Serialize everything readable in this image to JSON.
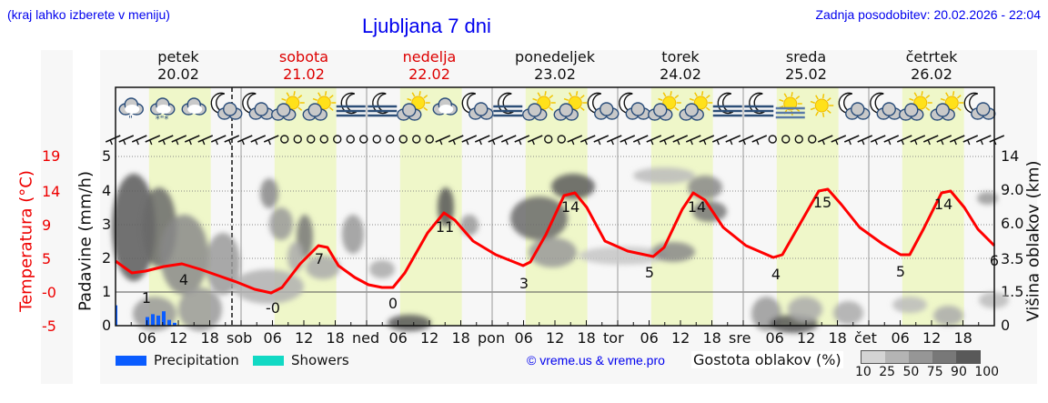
{
  "header": {
    "left_note": "(kraj lahko izberete v meniju)",
    "title": "Ljubljana 7 dni",
    "updated": "Zadnja posodobitev: 20.02.2026 - 22:04"
  },
  "days": [
    {
      "name": "petek",
      "date": "20.02",
      "weekend": false
    },
    {
      "name": "sobota",
      "date": "21.02",
      "weekend": true
    },
    {
      "name": "nedelja",
      "date": "22.02",
      "weekend": true
    },
    {
      "name": "ponedeljek",
      "date": "23.02",
      "weekend": false
    },
    {
      "name": "torek",
      "date": "24.02",
      "weekend": false
    },
    {
      "name": "sreda",
      "date": "25.02",
      "weekend": false
    },
    {
      "name": "četrtek",
      "date": "26.02",
      "weekend": false
    }
  ],
  "axes": {
    "temp_label": "Temperatura (°C)",
    "precip_label": "Padavine (mm/h)",
    "cloud_label": "Višina oblakov (km)",
    "temp_ticks": [
      "19",
      "14",
      "9",
      "5",
      "-0",
      "-5"
    ],
    "precip_ticks": [
      "5",
      "4",
      "3",
      "2",
      "1",
      "0"
    ],
    "cloud_ticks": [
      "14",
      "9.0",
      "6.0",
      "3.5",
      "1.5",
      "0"
    ],
    "x_ticks": [
      "06",
      "12",
      "18",
      "sob",
      "06",
      "12",
      "18",
      "ned",
      "06",
      "12",
      "18",
      "pon",
      "06",
      "12",
      "18",
      "tor",
      "06",
      "12",
      "18",
      "sre",
      "06",
      "12",
      "18",
      "čet",
      "06",
      "12",
      "18"
    ]
  },
  "legend": {
    "precipitation": "Precipitation",
    "showers": "Showers",
    "precipitation_color": "#0a5cff",
    "showers_color": "#12d9c4",
    "copyright": "© vreme.us & vreme.pro",
    "cloud_density_label": "Gostota oblakov (%)",
    "cloud_density_scale": "10 25 50 75 90 100",
    "cloud_density_colors": [
      "#d4d4d4",
      "#b4b4b4",
      "#969696",
      "#787878",
      "#595959"
    ]
  },
  "icons": [
    "cloud-drizzle",
    "cloud-sleet",
    "cloud",
    "moon-cloud",
    "moon-cloud",
    "sun-cloud",
    "sun-cloud",
    "moon-fog",
    "moon-fog",
    "sun-cloud",
    "cloud",
    "moon-cloud",
    "moon-fog",
    "sun-cloud",
    "sun-cloud",
    "moon-cloud",
    "moon-cloud",
    "sun-cloud",
    "sun-cloud",
    "moon-fog",
    "moon-fog",
    "sun-fog",
    "sun",
    "moon-cloud-small",
    "moon-cloud",
    "sun-cloud",
    "sun-cloud",
    "moon-cloud"
  ],
  "chart_data": {
    "type": "line",
    "title": "Ljubljana 7 dni",
    "xlabel": "",
    "ylabel": "Temperatura (°C)",
    "ylabel_secondary": [
      "Padavine (mm/h)",
      "Višina oblakov (km)"
    ],
    "categories": [
      "20.02",
      "21.02",
      "22.02",
      "23.02",
      "24.02",
      "25.02",
      "26.02"
    ],
    "series": [
      {
        "name": "Temperature",
        "color": "#ff0000",
        "points": [
          {
            "x": "20.02 00",
            "y": 2
          },
          {
            "x": "20.02 06",
            "y": 1
          },
          {
            "x": "20.02 12",
            "y": 4
          },
          {
            "x": "20.02 18",
            "y": 3
          },
          {
            "x": "21.02 06",
            "y": 0
          },
          {
            "x": "21.02 14",
            "y": 7
          },
          {
            "x": "22.02 05",
            "y": 0
          },
          {
            "x": "22.02 14",
            "y": 11
          },
          {
            "x": "23.02 07",
            "y": 3
          },
          {
            "x": "23.02 14",
            "y": 14
          },
          {
            "x": "24.02 07",
            "y": 5
          },
          {
            "x": "24.02 14",
            "y": 14
          },
          {
            "x": "25.02 06",
            "y": 4
          },
          {
            "x": "25.02 14",
            "y": 15
          },
          {
            "x": "26.02 06",
            "y": 5
          },
          {
            "x": "26.02 14",
            "y": 14
          },
          {
            "x": "26.02 24",
            "y": 6
          }
        ],
        "labels": [
          "1",
          "4",
          "-0",
          "7",
          "0",
          "11",
          "3",
          "14",
          "5",
          "14",
          "4",
          "15",
          "5",
          "14",
          "6"
        ]
      },
      {
        "name": "Precipitation",
        "color": "#0a5cff",
        "points": [
          {
            "x": "20.02 00",
            "y": 0.7
          },
          {
            "x": "20.02 05",
            "y": 0.3
          },
          {
            "x": "20.02 06",
            "y": 0.4
          },
          {
            "x": "20.02 07",
            "y": 0.35
          },
          {
            "x": "20.02 08",
            "y": 0.5
          },
          {
            "x": "20.02 09",
            "y": 0.2
          },
          {
            "x": "20.02 10",
            "y": 0.1
          }
        ]
      },
      {
        "name": "Showers",
        "color": "#12d9c4",
        "points": []
      }
    ],
    "ylim_temp": [
      -5,
      19
    ],
    "ylim_precip": [
      0,
      5
    ],
    "ylim_cloud_km": [
      0,
      14
    ],
    "grid": true,
    "legend_position": "bottom"
  }
}
